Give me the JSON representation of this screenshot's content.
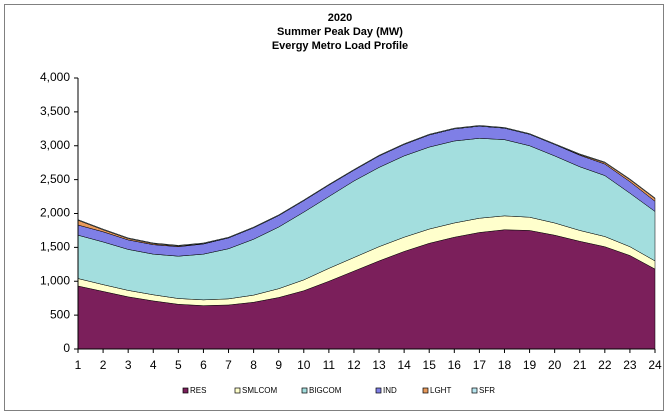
{
  "chart_data": {
    "type": "stacked_area",
    "title": [
      "2020",
      "Summer Peak Day (MW)",
      "Evergy Metro Load Profile"
    ],
    "categories": [
      "1",
      "2",
      "3",
      "4",
      "5",
      "6",
      "7",
      "8",
      "9",
      "10",
      "11",
      "12",
      "13",
      "14",
      "15",
      "16",
      "17",
      "18",
      "19",
      "20",
      "21",
      "22",
      "23",
      "24"
    ],
    "series": [
      {
        "name": "RES",
        "color": "#7b1f5b",
        "values": [
          930,
          850,
          770,
          710,
          660,
          640,
          650,
          690,
          760,
          860,
          1000,
          1150,
          1300,
          1440,
          1560,
          1650,
          1720,
          1760,
          1750,
          1680,
          1590,
          1510,
          1380,
          1180
        ]
      },
      {
        "name": "SMLCOM",
        "color": "#ffffcc",
        "values": [
          110,
          100,
          95,
          90,
          85,
          85,
          90,
          105,
          130,
          160,
          190,
          200,
          210,
          210,
          210,
          210,
          210,
          205,
          195,
          180,
          160,
          150,
          130,
          120
        ]
      },
      {
        "name": "BIGCOM",
        "color": "#a3dede",
        "values": [
          640,
          630,
          605,
          600,
          625,
          675,
          740,
          825,
          910,
          1000,
          1060,
          1130,
          1170,
          1200,
          1210,
          1210,
          1180,
          1125,
          1055,
          990,
          940,
          900,
          790,
          730
        ]
      },
      {
        "name": "IND",
        "color": "#7f7fe6",
        "values": [
          150,
          150,
          140,
          140,
          140,
          150,
          160,
          170,
          170,
          170,
          170,
          160,
          170,
          170,
          180,
          180,
          180,
          170,
          170,
          170,
          170,
          170,
          170,
          150
        ]
      },
      {
        "name": "LGHT",
        "color": "#e89a5c",
        "values": [
          70,
          30,
          20,
          15,
          10,
          5,
          0,
          0,
          0,
          0,
          0,
          0,
          0,
          0,
          0,
          0,
          0,
          0,
          0,
          0,
          10,
          20,
          30,
          40
        ]
      },
      {
        "name": "SFR",
        "color": "#b8e6f0",
        "values": [
          10,
          10,
          10,
          10,
          10,
          10,
          10,
          10,
          10,
          10,
          10,
          10,
          10,
          10,
          10,
          10,
          10,
          10,
          10,
          10,
          10,
          10,
          10,
          10
        ]
      }
    ],
    "ylim": [
      0,
      4000
    ],
    "yticks": [
      0,
      500,
      {
        "value": 1000,
        "label": "1,000"
      },
      {
        "value": 1500,
        "label": "1,500"
      },
      {
        "value": 2000,
        "label": "2,000"
      },
      {
        "value": 2500,
        "label": "2,500"
      },
      {
        "value": 3000,
        "label": "3,000"
      },
      {
        "value": 3500,
        "label": "3,500"
      },
      {
        "value": 4000,
        "label": "4,000"
      }
    ],
    "legend": "bottom"
  }
}
